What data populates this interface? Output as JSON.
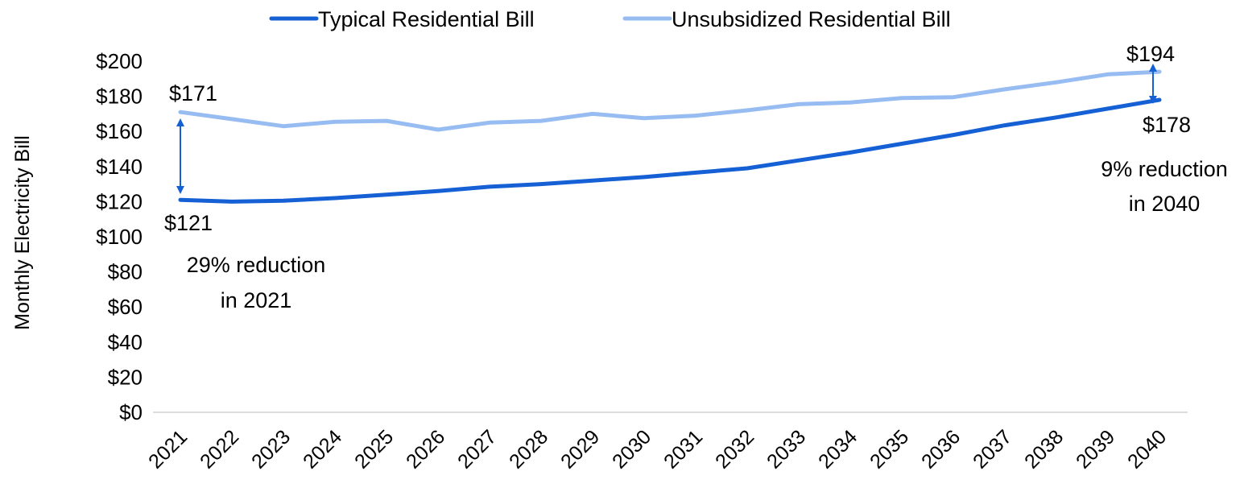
{
  "chart_data": {
    "type": "line",
    "title": "",
    "xlabel": "",
    "ylabel": "Monthly Electricity Bill",
    "categories": [
      "2021",
      "2022",
      "2023",
      "2024",
      "2025",
      "2026",
      "2027",
      "2028",
      "2029",
      "2030",
      "2031",
      "2032",
      "2033",
      "2034",
      "2035",
      "2036",
      "2037",
      "2038",
      "2039",
      "2040"
    ],
    "ylim": [
      0,
      200
    ],
    "y_ticks": [
      0,
      20,
      40,
      60,
      80,
      100,
      120,
      140,
      160,
      180,
      200
    ],
    "y_tick_labels": [
      "$0",
      "$20",
      "$40",
      "$60",
      "$80",
      "$100",
      "$120",
      "$140",
      "$160",
      "$180",
      "$200"
    ],
    "grid": false,
    "legend_position": "top",
    "series": [
      {
        "name": "Typical Residential Bill",
        "color": "#1560d4",
        "values": [
          121,
          120,
          120.5,
          122,
          124,
          126,
          128.5,
          130,
          132,
          134,
          136.5,
          139,
          143.5,
          148,
          153,
          158,
          163.5,
          168,
          173,
          178
        ]
      },
      {
        "name": "Unsubsidized Residential Bill",
        "color": "#97bcf2",
        "values": [
          171,
          167,
          163,
          165.5,
          166,
          161,
          165,
          166,
          170,
          167.5,
          169,
          172,
          175.5,
          176.5,
          179,
          179.5,
          184,
          188,
          192.5,
          194
        ]
      }
    ],
    "annotations": {
      "start_upper_label": "$171",
      "start_lower_label": "$121",
      "start_note_line1": "29% reduction",
      "start_note_line2": "in 2021",
      "end_upper_label": "$194",
      "end_lower_label": "$178",
      "end_note_line1": "9% reduction",
      "end_note_line2": "in 2040"
    }
  }
}
